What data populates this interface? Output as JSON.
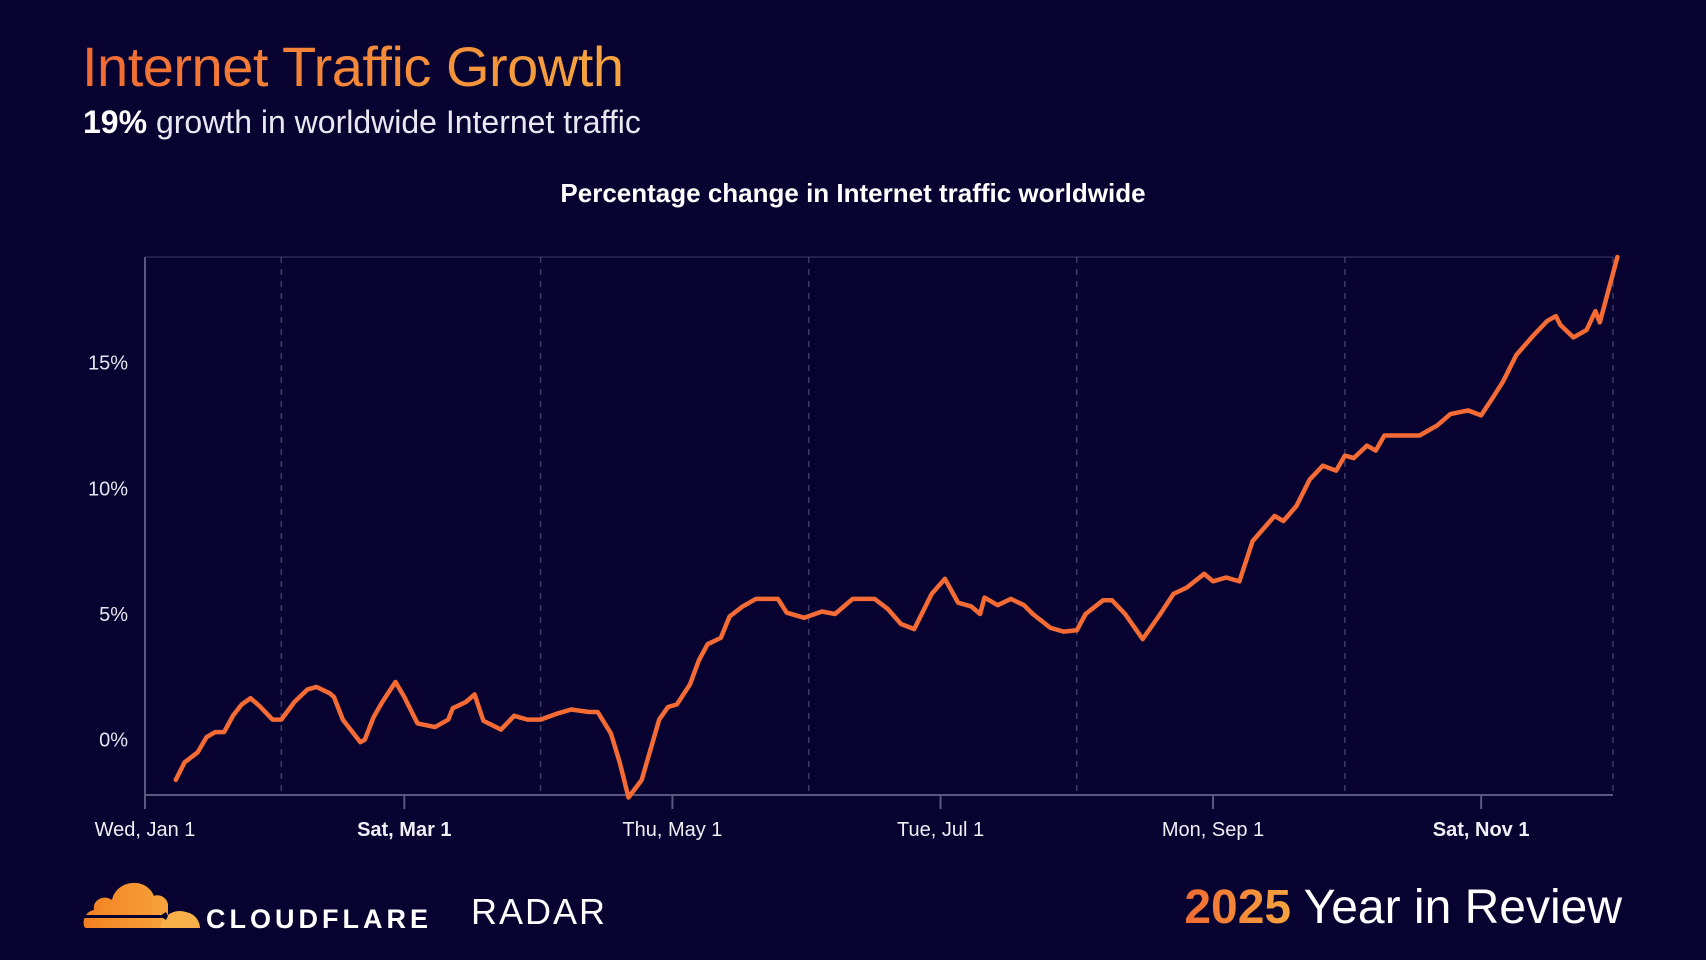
{
  "header": {
    "title": "Internet Traffic Growth",
    "subtitle_highlight": "19%",
    "subtitle_rest": " growth in worldwide Internet traffic"
  },
  "footer": {
    "brand": "CLOUDFLARE",
    "product": "RADAR",
    "year": "2025",
    "tagline": " Year in Review"
  },
  "colors": {
    "background": "#07022f",
    "line": "#f56b35",
    "axis": "#5a587e",
    "grid": "#3c3a66",
    "accent_start": "#f26a33",
    "accent_end": "#f5a53f"
  },
  "chart_data": {
    "type": "line",
    "title": "Percentage change in Internet traffic worldwide",
    "xlabel": "",
    "ylabel": "",
    "xlim": [
      "2025-01-01",
      "2025-12-02"
    ],
    "ylim": [
      -2.2,
      19.2
    ],
    "yticks": [
      0,
      5,
      10,
      15
    ],
    "ytick_labels": [
      "0%",
      "5%",
      "10%",
      "15%"
    ],
    "xticks": [
      "2025-01-01",
      "2025-03-01",
      "2025-05-01",
      "2025-07-01",
      "2025-09-01",
      "2025-11-01"
    ],
    "xtick_labels": [
      "Wed, Jan 1",
      "Sat, Mar 1",
      "Thu, May 1",
      "Tue, Jul 1",
      "Mon, Sep 1",
      "Sat, Nov 1"
    ],
    "xtick_bold": [
      false,
      true,
      false,
      false,
      false,
      true
    ],
    "grid_x": [
      "2025-02-01",
      "2025-04-01",
      "2025-06-01",
      "2025-08-01",
      "2025-10-01",
      "2025-12-01"
    ],
    "grid": "vertical dashed monthly",
    "legend": "none",
    "series": [
      {
        "x": [
          "2025-01-08",
          "2025-01-10",
          "2025-01-13",
          "2025-01-15",
          "2025-01-17",
          "2025-01-19",
          "2025-01-21",
          "2025-01-23",
          "2025-01-25",
          "2025-01-27",
          "2025-01-30",
          "2025-02-01",
          "2025-02-04",
          "2025-02-07",
          "2025-02-09",
          "2025-02-12",
          "2025-02-13",
          "2025-02-15",
          "2025-02-19",
          "2025-02-20",
          "2025-02-22",
          "2025-02-24",
          "2025-02-27",
          "2025-03-01",
          "2025-03-04",
          "2025-03-08",
          "2025-03-11",
          "2025-03-12",
          "2025-03-15",
          "2025-03-17",
          "2025-03-19",
          "2025-03-23",
          "2025-03-26",
          "2025-03-29",
          "2025-04-01",
          "2025-04-05",
          "2025-04-08",
          "2025-04-12",
          "2025-04-14",
          "2025-04-17",
          "2025-04-19",
          "2025-04-21",
          "2025-04-24",
          "2025-04-28",
          "2025-04-30",
          "2025-05-02",
          "2025-05-05",
          "2025-05-07",
          "2025-05-09",
          "2025-05-12",
          "2025-05-14",
          "2025-05-17",
          "2025-05-20",
          "2025-05-25",
          "2025-05-27",
          "2025-05-31",
          "2025-06-04",
          "2025-06-07",
          "2025-06-11",
          "2025-06-16",
          "2025-06-19",
          "2025-06-22",
          "2025-06-25",
          "2025-06-29",
          "2025-07-02",
          "2025-07-05",
          "2025-07-08",
          "2025-07-10",
          "2025-07-11",
          "2025-07-14",
          "2025-07-17",
          "2025-07-20",
          "2025-07-22",
          "2025-07-26",
          "2025-07-29",
          "2025-08-01",
          "2025-08-03",
          "2025-08-07",
          "2025-08-09",
          "2025-08-12",
          "2025-08-16",
          "2025-08-20",
          "2025-08-23",
          "2025-08-26",
          "2025-08-30",
          "2025-09-01",
          "2025-09-04",
          "2025-09-07",
          "2025-09-10",
          "2025-09-15",
          "2025-09-17",
          "2025-09-20",
          "2025-09-23",
          "2025-09-26",
          "2025-09-29",
          "2025-10-01",
          "2025-10-03",
          "2025-10-06",
          "2025-10-08",
          "2025-10-10",
          "2025-10-15",
          "2025-10-18",
          "2025-10-22",
          "2025-10-25",
          "2025-10-29",
          "2025-11-01",
          "2025-11-04",
          "2025-11-06",
          "2025-11-09",
          "2025-11-13",
          "2025-11-16",
          "2025-11-18",
          "2025-11-19",
          "2025-11-22",
          "2025-11-25",
          "2025-11-27",
          "2025-11-28",
          "2025-12-02"
        ],
        "values": [
          -1.6,
          -0.9,
          -0.5,
          0.1,
          0.3,
          0.3,
          0.95,
          1.4,
          1.65,
          1.35,
          0.8,
          0.8,
          1.5,
          2.0,
          2.1,
          1.85,
          1.7,
          0.8,
          -0.1,
          0,
          0.9,
          1.5,
          2.3,
          1.7,
          0.65,
          0.5,
          0.8,
          1.25,
          1.5,
          1.8,
          0.75,
          0.4,
          0.95,
          0.8,
          0.8,
          1.05,
          1.2,
          1.1,
          1.1,
          0.25,
          -0.9,
          -2.3,
          -1.6,
          0.8,
          1.3,
          1.4,
          2.2,
          3.15,
          3.8,
          4.05,
          4.9,
          5.3,
          5.6,
          5.6,
          5.05,
          4.85,
          5.1,
          5.0,
          5.6,
          5.6,
          5.2,
          4.6,
          4.4,
          5.8,
          6.4,
          5.45,
          5.3,
          5.0,
          5.65,
          5.35,
          5.6,
          5.35,
          5.0,
          4.45,
          4.3,
          4.35,
          5.0,
          5.55,
          5.55,
          5.0,
          4.0,
          5.0,
          5.8,
          6.05,
          6.6,
          6.3,
          6.45,
          6.3,
          7.9,
          8.9,
          8.7,
          9.3,
          10.35,
          10.9,
          10.7,
          11.3,
          11.2,
          11.7,
          11.5,
          12.1,
          12.1,
          12.1,
          12.5,
          12.95,
          13.1,
          12.9,
          13.7,
          14.25,
          15.3,
          16.1,
          16.65,
          16.85,
          16.5,
          16.0,
          16.3,
          17.05,
          16.6,
          19.2
        ]
      }
    ]
  }
}
